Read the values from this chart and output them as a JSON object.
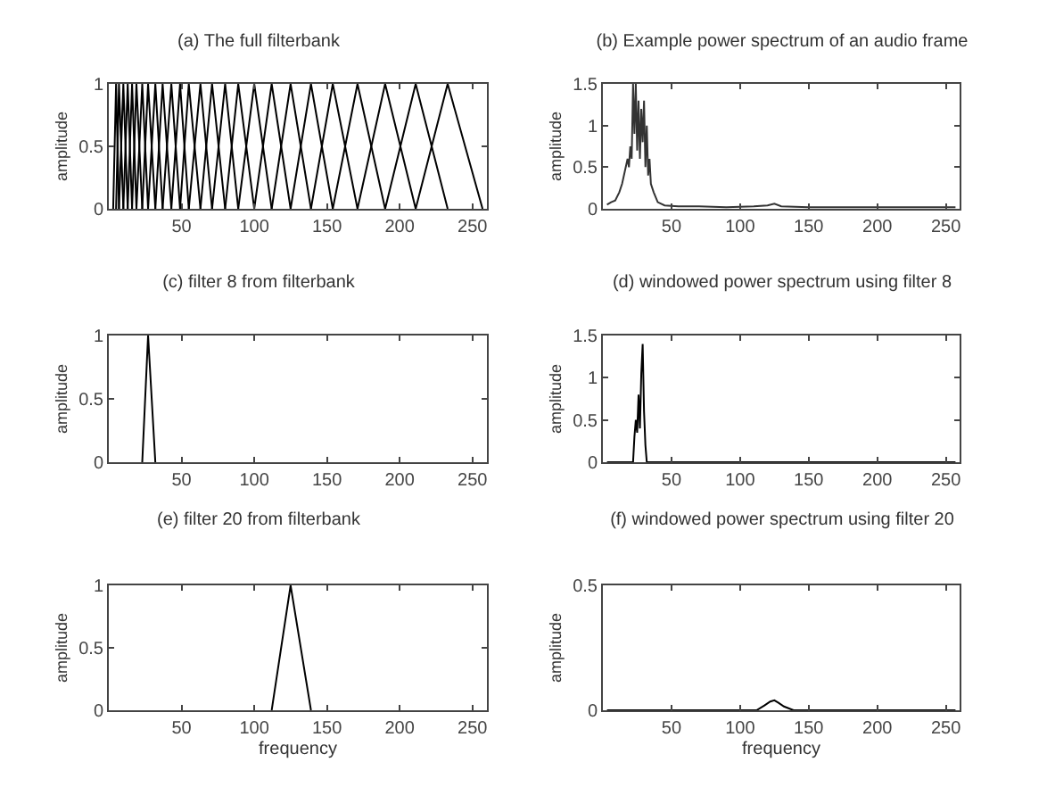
{
  "chart_data": [
    {
      "type": "line",
      "title": "(a) The full filterbank",
      "ylabel": "amplitude",
      "xlim": [
        0,
        260
      ],
      "xticks": [
        50,
        100,
        150,
        200,
        250
      ],
      "ylim": [
        0,
        1
      ],
      "yticks": [
        0,
        0.5,
        1
      ],
      "grid": false,
      "series": [
        {
          "color": "#000000",
          "x": [
            3,
            5,
            7
          ],
          "values": [
            0,
            1,
            0
          ]
        },
        {
          "color": "#000000",
          "x": [
            5,
            7,
            10
          ],
          "values": [
            0,
            1,
            0
          ]
        },
        {
          "color": "#000000",
          "x": [
            7,
            10,
            13
          ],
          "values": [
            0,
            1,
            0
          ]
        },
        {
          "color": "#000000",
          "x": [
            10,
            13,
            16
          ],
          "values": [
            0,
            1,
            0
          ]
        },
        {
          "color": "#000000",
          "x": [
            13,
            16,
            19
          ],
          "values": [
            0,
            1,
            0
          ]
        },
        {
          "color": "#000000",
          "x": [
            16,
            19,
            23
          ],
          "values": [
            0,
            1,
            0
          ]
        },
        {
          "color": "#000000",
          "x": [
            19,
            23,
            27
          ],
          "values": [
            0,
            1,
            0
          ]
        },
        {
          "color": "#000000",
          "x": [
            23,
            27,
            32
          ],
          "values": [
            0,
            1,
            0
          ]
        },
        {
          "color": "#000000",
          "x": [
            27,
            32,
            37
          ],
          "values": [
            0,
            1,
            0
          ]
        },
        {
          "color": "#000000",
          "x": [
            32,
            37,
            43
          ],
          "values": [
            0,
            1,
            0
          ]
        },
        {
          "color": "#000000",
          "x": [
            37,
            43,
            49
          ],
          "values": [
            0,
            1,
            0
          ]
        },
        {
          "color": "#000000",
          "x": [
            43,
            49,
            55
          ],
          "values": [
            0,
            1,
            0
          ]
        },
        {
          "color": "#000000",
          "x": [
            49,
            55,
            63
          ],
          "values": [
            0,
            1,
            0
          ]
        },
        {
          "color": "#000000",
          "x": [
            55,
            63,
            71
          ],
          "values": [
            0,
            1,
            0
          ]
        },
        {
          "color": "#000000",
          "x": [
            63,
            71,
            80
          ],
          "values": [
            0,
            1,
            0
          ]
        },
        {
          "color": "#000000",
          "x": [
            71,
            80,
            89
          ],
          "values": [
            0,
            1,
            0
          ]
        },
        {
          "color": "#000000",
          "x": [
            80,
            89,
            100
          ],
          "values": [
            0,
            1,
            0
          ]
        },
        {
          "color": "#000000",
          "x": [
            89,
            100,
            112
          ],
          "values": [
            0,
            1,
            0
          ]
        },
        {
          "color": "#000000",
          "x": [
            100,
            112,
            125
          ],
          "values": [
            0,
            1,
            0
          ]
        },
        {
          "color": "#000000",
          "x": [
            112,
            125,
            139
          ],
          "values": [
            0,
            1,
            0
          ]
        },
        {
          "color": "#000000",
          "x": [
            125,
            139,
            154
          ],
          "values": [
            0,
            1,
            0
          ]
        },
        {
          "color": "#000000",
          "x": [
            139,
            154,
            171
          ],
          "values": [
            0,
            1,
            0
          ]
        },
        {
          "color": "#000000",
          "x": [
            154,
            171,
            190
          ],
          "values": [
            0,
            1,
            0
          ]
        },
        {
          "color": "#000000",
          "x": [
            171,
            190,
            211
          ],
          "values": [
            0,
            1,
            0
          ]
        },
        {
          "color": "#000000",
          "x": [
            190,
            211,
            233
          ],
          "values": [
            0,
            1,
            0
          ]
        },
        {
          "color": "#000000",
          "x": [
            211,
            233,
            257
          ],
          "values": [
            0,
            1,
            0
          ]
        }
      ]
    },
    {
      "type": "line",
      "title": "(b) Example power spectrum of an audio frame",
      "ylabel": "amplitude",
      "xlim": [
        0,
        260
      ],
      "xticks": [
        50,
        100,
        150,
        200,
        250
      ],
      "ylim": [
        0,
        1.5
      ],
      "yticks": [
        0,
        0.5,
        1,
        1.5
      ],
      "grid": false,
      "series": [
        {
          "color": "#333333",
          "x": [
            3,
            6,
            9,
            12,
            14,
            16,
            18,
            19,
            20,
            21,
            22,
            23,
            24,
            25,
            26,
            27,
            28,
            29,
            30,
            31,
            32,
            33,
            34,
            35,
            37,
            40,
            45,
            55,
            70,
            90,
            110,
            120,
            125,
            130,
            150,
            180,
            210,
            240,
            257
          ],
          "values": [
            0.05,
            0.08,
            0.1,
            0.2,
            0.3,
            0.45,
            0.6,
            0.5,
            0.75,
            0.6,
            1.5,
            0.9,
            1.5,
            0.7,
            1.3,
            0.6,
            1.2,
            0.8,
            1.3,
            0.5,
            1.0,
            0.4,
            0.6,
            0.3,
            0.2,
            0.08,
            0.04,
            0.03,
            0.03,
            0.02,
            0.03,
            0.04,
            0.06,
            0.03,
            0.02,
            0.02,
            0.02,
            0.02,
            0.02
          ]
        }
      ]
    },
    {
      "type": "line",
      "title": "(c) filter 8 from filterbank",
      "ylabel": "amplitude",
      "xlim": [
        0,
        260
      ],
      "xticks": [
        50,
        100,
        150,
        200,
        250
      ],
      "ylim": [
        0,
        1
      ],
      "yticks": [
        0,
        0.5,
        1
      ],
      "grid": false,
      "series": [
        {
          "color": "#000000",
          "x": [
            23,
            27,
            32
          ],
          "values": [
            0,
            1,
            0
          ]
        }
      ]
    },
    {
      "type": "line",
      "title": "(d) windowed power spectrum using filter 8",
      "ylabel": "amplitude",
      "xlim": [
        0,
        260
      ],
      "xticks": [
        50,
        100,
        150,
        200,
        250
      ],
      "ylim": [
        0,
        1.5
      ],
      "yticks": [
        0,
        0.5,
        1,
        1.5
      ],
      "grid": false,
      "series": [
        {
          "color": "#000000",
          "x": [
            3,
            22,
            23,
            24,
            25,
            26,
            27,
            28,
            29,
            30,
            31,
            32,
            257
          ],
          "values": [
            0,
            0,
            0.3,
            0.5,
            0.35,
            0.8,
            0.4,
            1.05,
            1.4,
            0.6,
            0.2,
            0,
            0
          ]
        }
      ]
    },
    {
      "type": "line",
      "title": "(e) filter 20 from filterbank",
      "xlabel": "frequency",
      "ylabel": "amplitude",
      "xlim": [
        0,
        260
      ],
      "xticks": [
        50,
        100,
        150,
        200,
        250
      ],
      "ylim": [
        0,
        1
      ],
      "yticks": [
        0,
        0.5,
        1
      ],
      "grid": false,
      "series": [
        {
          "color": "#000000",
          "x": [
            112,
            125,
            139
          ],
          "values": [
            0,
            1,
            0
          ]
        }
      ]
    },
    {
      "type": "line",
      "title": "(f) windowed power spectrum using filter 20",
      "xlabel": "frequency",
      "ylabel": "amplitude",
      "xlim": [
        0,
        260
      ],
      "xticks": [
        50,
        100,
        150,
        200,
        250
      ],
      "ylim": [
        0,
        0.5
      ],
      "yticks": [
        0,
        0.5
      ],
      "grid": false,
      "series": [
        {
          "color": "#000000",
          "x": [
            3,
            112,
            118,
            122,
            125,
            128,
            132,
            139,
            257
          ],
          "values": [
            0,
            0,
            0.02,
            0.035,
            0.04,
            0.03,
            0.015,
            0,
            0
          ]
        }
      ]
    }
  ]
}
